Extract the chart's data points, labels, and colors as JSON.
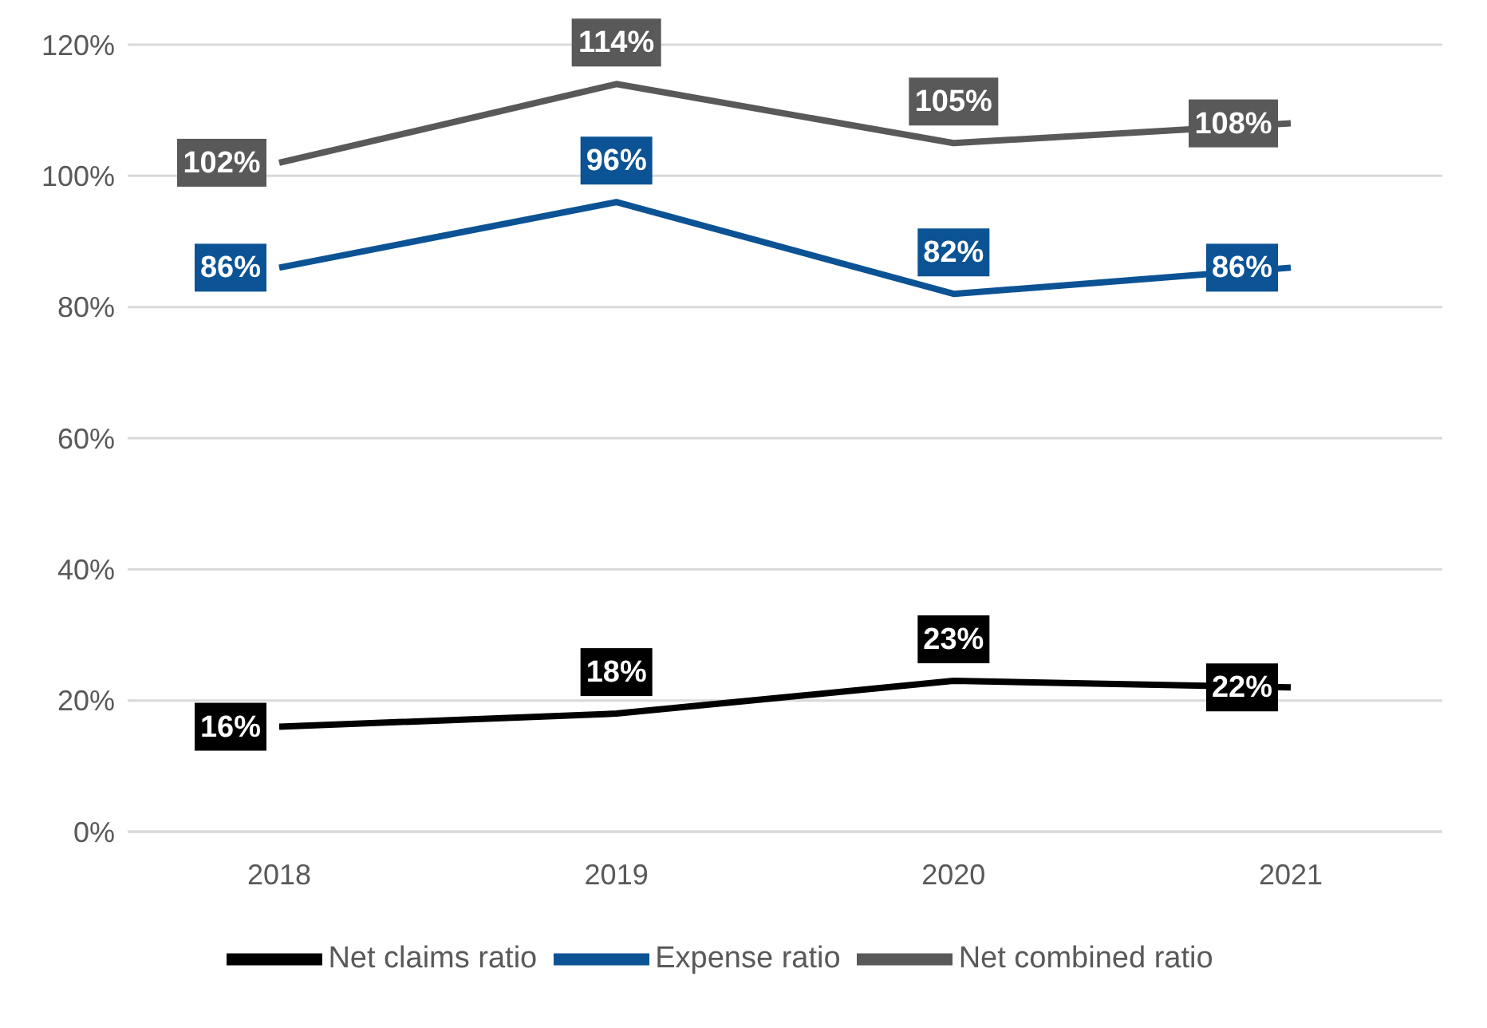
{
  "chart_data": {
    "type": "line",
    "categories": [
      "2018",
      "2019",
      "2020",
      "2021"
    ],
    "series": [
      {
        "name": "Net claims ratio",
        "color": "#000000",
        "values": [
          16,
          18,
          23,
          22
        ],
        "value_labels": [
          "16%",
          "18%",
          "23%",
          "22%"
        ]
      },
      {
        "name": "Expense ratio",
        "color": "#0b5394",
        "values": [
          86,
          96,
          82,
          86
        ],
        "value_labels": [
          "86%",
          "96%",
          "82%",
          "86%"
        ]
      },
      {
        "name": "Net combined ratio",
        "color": "#595959",
        "values": [
          102,
          114,
          105,
          108
        ],
        "value_labels": [
          "102%",
          "114%",
          "105%",
          "108%"
        ]
      }
    ],
    "ylim": [
      0,
      120
    ],
    "yticks": [
      {
        "value": 0,
        "label": "0%"
      },
      {
        "value": 20,
        "label": "20%"
      },
      {
        "value": 40,
        "label": "40%"
      },
      {
        "value": 60,
        "label": "60%"
      },
      {
        "value": 80,
        "label": "80%"
      },
      {
        "value": 100,
        "label": "100%"
      },
      {
        "value": 120,
        "label": "120%"
      }
    ],
    "grid": "y",
    "legend": "bottom",
    "line_style": "solid"
  }
}
